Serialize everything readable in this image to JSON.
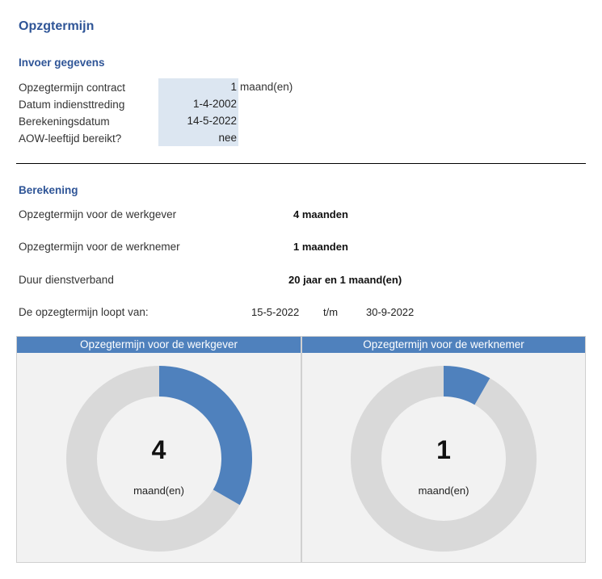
{
  "page": {
    "title": "Opzgtermijn"
  },
  "input": {
    "heading": "Invoer gegevens",
    "rows": [
      {
        "label": "Opzegtermijn contract",
        "value": "1",
        "unit": "maand(en)"
      },
      {
        "label": "Datum indiensttreding",
        "value": "1-4-2002",
        "unit": ""
      },
      {
        "label": "Berekeningsdatum",
        "value": "14-5-2022",
        "unit": ""
      },
      {
        "label": "AOW-leeftijd bereikt?",
        "value": "nee",
        "unit": ""
      }
    ]
  },
  "calc": {
    "heading": "Berekening",
    "employer_label": "Opzegtermijn voor de werkgever",
    "employer_value": "4 maanden",
    "employee_label": "Opzegtermijn voor de werknemer",
    "employee_value": "1 maanden",
    "duration_label": "Duur dienstverband",
    "duration_value": "20 jaar en 1 maand(en)",
    "period_label": "De opzegtermijn loopt van:",
    "period_from": "15-5-2022",
    "period_sep": "t/m",
    "period_to": "30-9-2022"
  },
  "charts": [
    {
      "header": "Opzegtermijn voor de werkgever",
      "number": "4",
      "unit": "maand(en)",
      "fraction": 0.333
    },
    {
      "header": "Opzegtermijn voor de werknemer",
      "number": "1",
      "unit": "maand(en)",
      "fraction": 0.083
    }
  ],
  "colors": {
    "accent": "#4f81bd",
    "ring": "#d9d9d9",
    "heading": "#2f5597"
  }
}
